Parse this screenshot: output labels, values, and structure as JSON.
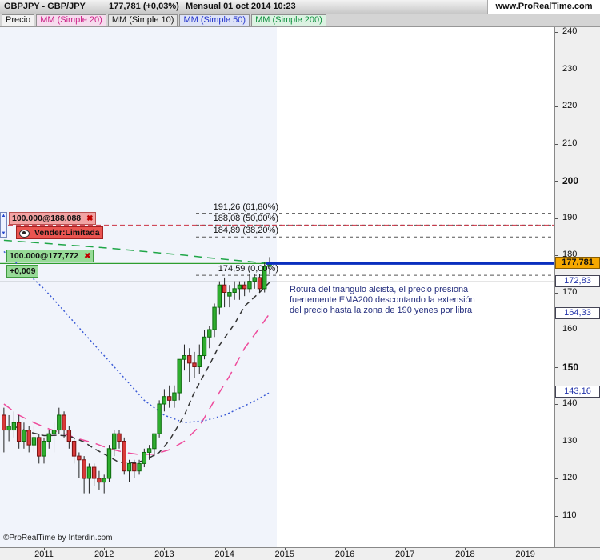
{
  "header": {
    "symbol": "GBPJPY - GBP/JPY",
    "price": "177,781 (+0,03%)",
    "timeframe": "Mensual  01 oct 2014 10:23",
    "site": "www.ProRealTime.com"
  },
  "toolbar": {
    "price_label": "Precio",
    "indicators": [
      {
        "label": "MM (Simple 20)",
        "color": "#cc2288",
        "bg": "#f6dcee"
      },
      {
        "label": "MM (Simple 10)",
        "color": "#111111",
        "bg": "#e6e6e6"
      },
      {
        "label": "MM (Simple 50)",
        "color": "#2233cc",
        "bg": "#dde2f6"
      },
      {
        "label": "MM (Simple 200)",
        "color": "#11913f",
        "bg": "#dcf2e2"
      }
    ]
  },
  "icons": {
    "close": "✖",
    "up_arrow": "▲",
    "down_arrow": "▼"
  },
  "orders": {
    "sell": {
      "qty_label": "100.000@188,088",
      "type_label": "Vender:Limitada"
    },
    "buy": {
      "qty_label": "100.000@177,772",
      "pl_label": "+0,009"
    }
  },
  "annotation": {
    "lines": [
      "Rotura del triangulo alcista, el precio presiona",
      "fuertemente  EMA200 descontando la extensión",
      "del precio hasta la zona de 190 yenes por libra"
    ]
  },
  "price_tags": [
    {
      "label": "177,781",
      "price": 177.781,
      "style": "current"
    },
    {
      "label": "172,83",
      "price": 172.83,
      "style": "plain"
    },
    {
      "label": "164,33",
      "price": 164.33,
      "style": "plain"
    },
    {
      "label": "143,16",
      "price": 143.16,
      "style": "plain"
    }
  ],
  "footer": {
    "copyright": "©ProRealTime by Interdin.com"
  },
  "chart_data": {
    "type": "candlestick",
    "title": "GBP/JPY monthly",
    "y_axis": {
      "min": 110,
      "max": 240,
      "step": 10,
      "bold_ticks": [
        200,
        150
      ]
    },
    "x_axis": {
      "years": [
        2011,
        2012,
        2013,
        2014,
        2015,
        2016,
        2017,
        2018,
        2019
      ]
    },
    "plot": {
      "up_color": "#2fae2f",
      "down_color": "#d93a3a",
      "history_bg": "#f1f4fb"
    },
    "levels": {
      "current_price": 177.781,
      "order_sell": 188.088,
      "order_buy": 177.772,
      "hline": 172.83
    },
    "fib_levels": [
      {
        "label": "191,26 (61,80%)",
        "price": 191.26
      },
      {
        "label": "188,08 (50,00%)",
        "price": 188.08
      },
      {
        "label": "184,89 (38,20%)",
        "price": 184.89
      },
      {
        "label": "174,59 (0,00%)",
        "price": 174.59
      }
    ],
    "candles": [
      [
        -8,
        137,
        139,
        127,
        133
      ],
      [
        -7,
        133,
        137,
        130,
        134
      ],
      [
        -6,
        133,
        138,
        131,
        135
      ],
      [
        -5,
        135,
        137,
        128,
        130
      ],
      [
        -4,
        130,
        135,
        128,
        133
      ],
      [
        -3,
        133,
        134,
        127,
        129
      ],
      [
        -2,
        129,
        134,
        127,
        131
      ],
      [
        -1,
        131,
        132,
        124,
        126
      ],
      [
        0,
        126,
        131,
        124,
        130
      ],
      [
        1,
        130,
        133,
        128,
        132
      ],
      [
        2,
        132,
        135,
        127,
        133
      ],
      [
        3,
        133,
        139,
        132,
        137
      ],
      [
        4,
        137,
        138,
        131,
        133
      ],
      [
        5,
        133,
        134,
        128,
        130
      ],
      [
        6,
        130,
        131,
        124,
        126
      ],
      [
        7,
        126,
        127,
        120,
        125
      ],
      [
        8,
        125,
        126,
        116,
        120
      ],
      [
        9,
        120,
        124,
        116,
        123
      ],
      [
        10,
        123,
        124,
        118,
        120
      ],
      [
        11,
        120,
        122,
        117,
        119
      ],
      [
        12,
        119,
        121,
        116,
        120
      ],
      [
        13,
        120,
        129,
        119,
        128
      ],
      [
        14,
        128,
        133,
        126,
        132
      ],
      [
        15,
        132,
        133,
        128,
        130
      ],
      [
        16,
        130,
        131,
        121,
        122
      ],
      [
        17,
        122,
        125,
        119,
        124
      ],
      [
        18,
        124,
        125,
        120,
        122
      ],
      [
        19,
        122,
        125,
        121,
        124
      ],
      [
        20,
        124,
        128,
        123,
        127
      ],
      [
        21,
        127,
        129,
        125,
        128
      ],
      [
        22,
        128,
        132,
        126,
        132
      ],
      [
        23,
        132,
        141,
        131,
        140
      ],
      [
        24,
        140,
        144,
        138,
        142
      ],
      [
        25,
        142,
        145,
        139,
        141
      ],
      [
        26,
        141,
        145,
        139,
        143
      ],
      [
        27,
        143,
        152,
        141,
        152
      ],
      [
        28,
        152,
        156,
        149,
        153
      ],
      [
        29,
        153,
        155,
        146,
        151
      ],
      [
        30,
        151,
        154,
        147,
        150
      ],
      [
        31,
        150,
        156,
        148,
        153
      ],
      [
        32,
        153,
        160,
        152,
        158
      ],
      [
        33,
        158,
        161,
        155,
        160
      ],
      [
        34,
        160,
        167,
        158,
        166
      ],
      [
        35,
        166,
        173,
        164,
        172
      ],
      [
        36,
        172,
        174,
        166,
        170
      ],
      [
        37,
        169,
        172,
        166,
        170
      ],
      [
        38,
        170,
        173,
        168,
        171
      ],
      [
        39,
        171,
        173,
        168,
        172
      ],
      [
        40,
        172,
        173,
        169,
        171
      ],
      [
        41,
        171,
        175,
        170,
        173
      ],
      [
        42,
        173,
        175,
        171,
        174
      ],
      [
        43,
        174,
        175,
        170,
        171
      ],
      [
        44,
        171,
        178,
        170,
        177
      ],
      [
        45,
        177,
        179.5,
        175,
        177.8
      ]
    ],
    "moving_averages": [
      {
        "key": "mm200",
        "name": "MM (Simple 200)",
        "color": "#1fa647",
        "dash": "10 7",
        "points": [
          [
            -8,
            184
          ],
          [
            -4,
            183.6
          ],
          [
            0,
            183.2
          ],
          [
            4,
            182.8
          ],
          [
            8,
            182.4
          ],
          [
            12,
            182
          ],
          [
            16,
            181.5
          ],
          [
            20,
            181
          ],
          [
            24,
            180.5
          ],
          [
            28,
            180
          ],
          [
            32,
            179.4
          ],
          [
            36,
            178.9
          ],
          [
            40,
            178.4
          ],
          [
            43,
            178
          ],
          [
            45,
            177.8
          ]
        ]
      },
      {
        "key": "mm20",
        "name": "MM (Simple 20)",
        "color": "#ee4a9b",
        "dash": "12 9",
        "points": [
          [
            -8,
            140
          ],
          [
            -5,
            137
          ],
          [
            -2,
            135
          ],
          [
            1,
            133.3
          ],
          [
            4,
            132
          ],
          [
            7,
            130.6
          ],
          [
            10,
            129.5
          ],
          [
            13,
            128
          ],
          [
            16,
            127
          ],
          [
            19,
            126.4
          ],
          [
            22,
            126.5
          ],
          [
            25,
            127.7
          ],
          [
            28,
            130
          ],
          [
            31,
            134
          ],
          [
            34,
            141
          ],
          [
            37,
            147.5
          ],
          [
            40,
            155
          ],
          [
            43,
            160.5
          ],
          [
            45,
            164.3
          ]
        ]
      },
      {
        "key": "mm10",
        "name": "MM (Simple 10)",
        "color": "#333333",
        "dash": "7 5",
        "points": [
          [
            -6,
            134
          ],
          [
            -3,
            132.5
          ],
          [
            0,
            131.5
          ],
          [
            3,
            131.6
          ],
          [
            5,
            131.4
          ],
          [
            8,
            129.8
          ],
          [
            10,
            128
          ],
          [
            13,
            125.8
          ],
          [
            15,
            124.3
          ],
          [
            18,
            124.2
          ],
          [
            20,
            124.8
          ],
          [
            23,
            127
          ],
          [
            25,
            130.2
          ],
          [
            28,
            137
          ],
          [
            30,
            143.2
          ],
          [
            33,
            150.5
          ],
          [
            35,
            155.8
          ],
          [
            38,
            161.5
          ],
          [
            40,
            166.3
          ],
          [
            43,
            170
          ],
          [
            45,
            172.7
          ]
        ]
      },
      {
        "key": "mm50",
        "name": "MM (Simple 50)",
        "color": "#3b5bd6",
        "dash": "2 3",
        "points": [
          [
            -8,
            181
          ],
          [
            -4,
            176
          ],
          [
            0,
            171
          ],
          [
            4,
            165
          ],
          [
            8,
            159
          ],
          [
            12,
            153
          ],
          [
            16,
            147
          ],
          [
            20,
            141
          ],
          [
            24,
            137
          ],
          [
            28,
            135
          ],
          [
            32,
            135.5
          ],
          [
            36,
            137
          ],
          [
            40,
            139.5
          ],
          [
            43,
            141.5
          ],
          [
            45,
            143.1
          ]
        ]
      }
    ]
  }
}
